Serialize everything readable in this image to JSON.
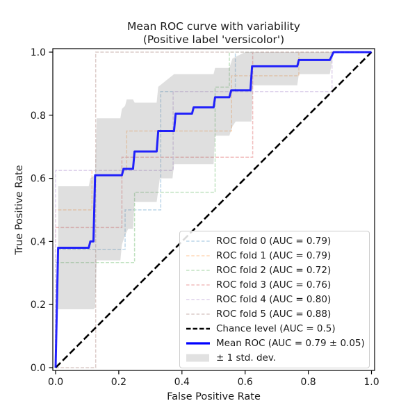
{
  "title": {
    "line1": "Mean ROC curve with variability",
    "line2": "(Positive label 'versicolor')"
  },
  "axes": {
    "xlabel": "False Positive Rate",
    "ylabel": "True Positive Rate",
    "x_tick_labels": [
      "0.0",
      "0.2",
      "0.4",
      "0.6",
      "0.8",
      "1.0"
    ],
    "y_tick_labels": [
      "0.0",
      "0.2",
      "0.4",
      "0.6",
      "0.8",
      "1.0"
    ],
    "x_tick_values": [
      0.0,
      0.2,
      0.4,
      0.6,
      0.8,
      1.0
    ],
    "y_tick_values": [
      0.0,
      0.2,
      0.4,
      0.6,
      0.8,
      1.0
    ]
  },
  "legend": {
    "items": [
      {
        "label": "ROC fold 0 (AUC = 0.79)",
        "style": "fold-dashed",
        "color": "#bcd6e9"
      },
      {
        "label": "ROC fold 1 (AUC = 0.79)",
        "style": "fold-dashed",
        "color": "#ffd8b7"
      },
      {
        "label": "ROC fold 2 (AUC = 0.72)",
        "style": "fold-dashed",
        "color": "#c0e2c0"
      },
      {
        "label": "ROC fold 3 (AUC = 0.76)",
        "style": "fold-dashed",
        "color": "#f2bebe"
      },
      {
        "label": "ROC fold 4 (AUC = 0.80)",
        "style": "fold-dashed",
        "color": "#ded1eb"
      },
      {
        "label": "ROC fold 5 (AUC = 0.88)",
        "style": "fold-dashed",
        "color": "#dcccc9"
      },
      {
        "label": "Chance level (AUC = 0.5)",
        "style": "chance-dashed",
        "color": "#000000"
      },
      {
        "label": "Mean ROC (AUC = 0.79 ± 0.05)",
        "style": "mean-solid",
        "color": "#0000ff"
      },
      {
        "label": "± 1 std. dev.",
        "style": "band-patch",
        "color": "#dcdcdc"
      }
    ]
  },
  "chart_data": {
    "type": "line",
    "title": "Mean ROC curve with variability (Positive label 'versicolor')",
    "xlabel": "False Positive Rate",
    "ylabel": "True Positive Rate",
    "xlim": [
      -0.01,
      1.01
    ],
    "ylim": [
      -0.01,
      1.01
    ],
    "grid": false,
    "legend_position": "lower right",
    "folds": [
      {
        "name": "ROC fold 0",
        "auc": 0.79,
        "color": "#bcd6e9",
        "points": [
          [
            0,
            0
          ],
          [
            0,
            0.375
          ],
          [
            0.22,
            0.375
          ],
          [
            0.22,
            0.5
          ],
          [
            0.333,
            0.5
          ],
          [
            0.333,
            0.875
          ],
          [
            0.569,
            0.875
          ],
          [
            0.569,
            1
          ],
          [
            1,
            1
          ]
        ]
      },
      {
        "name": "ROC fold 1",
        "auc": 0.79,
        "color": "#ffd8b7",
        "points": [
          [
            0,
            0
          ],
          [
            0,
            0.5
          ],
          [
            0.115,
            0.5
          ],
          [
            0.115,
            0.625
          ],
          [
            0.225,
            0.625
          ],
          [
            0.225,
            0.75
          ],
          [
            0.557,
            0.75
          ],
          [
            0.557,
            0.925
          ],
          [
            0.77,
            0.925
          ],
          [
            0.77,
            1
          ],
          [
            1,
            1
          ]
        ]
      },
      {
        "name": "ROC fold 2",
        "auc": 0.72,
        "color": "#c0e2c0",
        "points": [
          [
            0,
            0
          ],
          [
            0,
            0.333
          ],
          [
            0.25,
            0.333
          ],
          [
            0.25,
            0.556
          ],
          [
            0.505,
            0.556
          ],
          [
            0.505,
            0.889
          ],
          [
            0.55,
            0.889
          ],
          [
            0.55,
            1
          ],
          [
            1,
            1
          ]
        ]
      },
      {
        "name": "ROC fold 3",
        "auc": 0.76,
        "color": "#f2bebe",
        "points": [
          [
            0,
            0
          ],
          [
            0,
            0.444
          ],
          [
            0.21,
            0.444
          ],
          [
            0.21,
            0.667
          ],
          [
            0.624,
            0.667
          ],
          [
            0.624,
            1
          ],
          [
            1,
            1
          ]
        ]
      },
      {
        "name": "ROC fold 4",
        "auc": 0.8,
        "color": "#ded1eb",
        "points": [
          [
            0,
            0
          ],
          [
            0,
            0.625
          ],
          [
            0.372,
            0.625
          ],
          [
            0.372,
            0.875
          ],
          [
            0.875,
            0.875
          ],
          [
            0.875,
            1
          ],
          [
            1,
            1
          ]
        ]
      },
      {
        "name": "ROC fold 5",
        "auc": 0.88,
        "color": "#dcccc9",
        "points": [
          [
            0,
            0
          ],
          [
            0.127,
            0
          ],
          [
            0.127,
            1
          ],
          [
            1,
            1
          ]
        ]
      }
    ],
    "chance": {
      "name": "Chance level",
      "auc": 0.5,
      "color": "#000000",
      "points": [
        [
          0,
          0
        ],
        [
          1,
          1
        ]
      ]
    },
    "mean": {
      "name": "Mean ROC",
      "auc": 0.79,
      "auc_std": 0.05,
      "color": "#0000ff",
      "points": [
        [
          0,
          0
        ],
        [
          0.008,
          0.38
        ],
        [
          0.105,
          0.38
        ],
        [
          0.11,
          0.4
        ],
        [
          0.12,
          0.4
        ],
        [
          0.125,
          0.61
        ],
        [
          0.21,
          0.61
        ],
        [
          0.215,
          0.63
        ],
        [
          0.245,
          0.63
        ],
        [
          0.25,
          0.685
        ],
        [
          0.32,
          0.685
        ],
        [
          0.325,
          0.75
        ],
        [
          0.375,
          0.75
        ],
        [
          0.38,
          0.805
        ],
        [
          0.432,
          0.805
        ],
        [
          0.437,
          0.825
        ],
        [
          0.5,
          0.825
        ],
        [
          0.505,
          0.857
        ],
        [
          0.55,
          0.857
        ],
        [
          0.556,
          0.879
        ],
        [
          0.617,
          0.879
        ],
        [
          0.622,
          0.955
        ],
        [
          0.765,
          0.955
        ],
        [
          0.77,
          0.975
        ],
        [
          0.868,
          0.975
        ],
        [
          0.88,
          1
        ],
        [
          1,
          1
        ]
      ]
    },
    "band": {
      "name": "± 1 std. dev.",
      "fill": "rgba(128,128,128,0.25)",
      "upper": [
        [
          0.008,
          0.575
        ],
        [
          0.105,
          0.575
        ],
        [
          0.11,
          0.6
        ],
        [
          0.125,
          0.61
        ],
        [
          0.13,
          0.79
        ],
        [
          0.205,
          0.79
        ],
        [
          0.21,
          0.82
        ],
        [
          0.22,
          0.83
        ],
        [
          0.225,
          0.85
        ],
        [
          0.245,
          0.85
        ],
        [
          0.25,
          0.84
        ],
        [
          0.32,
          0.84
        ],
        [
          0.325,
          0.89
        ],
        [
          0.375,
          0.93
        ],
        [
          0.5,
          0.93
        ],
        [
          0.505,
          0.95
        ],
        [
          0.55,
          0.95
        ],
        [
          0.56,
          0.98
        ],
        [
          0.6,
          1
        ],
        [
          0.88,
          1
        ]
      ],
      "lower": [
        [
          0.008,
          0.185
        ],
        [
          0.12,
          0.185
        ],
        [
          0.125,
          0.19
        ],
        [
          0.13,
          0.34
        ],
        [
          0.205,
          0.34
        ],
        [
          0.21,
          0.39
        ],
        [
          0.22,
          0.42
        ],
        [
          0.23,
          0.44
        ],
        [
          0.245,
          0.44
        ],
        [
          0.25,
          0.525
        ],
        [
          0.32,
          0.525
        ],
        [
          0.33,
          0.6
        ],
        [
          0.37,
          0.6
        ],
        [
          0.375,
          0.645
        ],
        [
          0.5,
          0.645
        ],
        [
          0.505,
          0.735
        ],
        [
          0.55,
          0.735
        ],
        [
          0.56,
          0.765
        ],
        [
          0.57,
          0.78
        ],
        [
          0.62,
          0.78
        ],
        [
          0.625,
          0.895
        ],
        [
          0.765,
          0.895
        ],
        [
          0.77,
          0.93
        ],
        [
          0.868,
          0.93
        ],
        [
          0.88,
          1
        ]
      ]
    }
  },
  "colors": {
    "mean_line": "#0000ff",
    "chance_line": "#000000",
    "band_fill": "rgba(128,128,128,0.25)",
    "spine": "#000000",
    "legend_border": "#cccccc"
  }
}
